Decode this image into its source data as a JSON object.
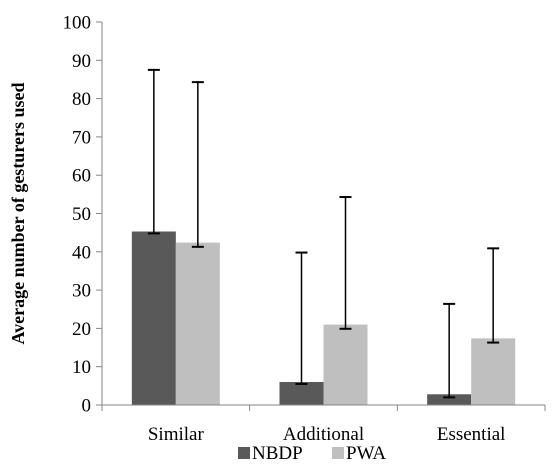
{
  "chart_data": {
    "type": "bar",
    "title": "",
    "xlabel": "",
    "ylabel": "Average number of gesturers used",
    "ylim": [
      0,
      100
    ],
    "yticks": [
      0,
      10,
      20,
      30,
      40,
      50,
      60,
      70,
      80,
      90,
      100
    ],
    "categories": [
      "Similar",
      "Additional",
      "Essential"
    ],
    "series": [
      {
        "name": "NBDP",
        "color": "#595959",
        "values": [
          45.3,
          6.0,
          2.8
        ],
        "err_low": [
          44.8,
          5.5,
          2.0
        ],
        "err_high": [
          87.5,
          39.8,
          26.4
        ]
      },
      {
        "name": "PWA",
        "color": "#bfbfbf",
        "values": [
          42.4,
          21.0,
          17.4
        ],
        "err_low": [
          41.3,
          19.9,
          16.3
        ],
        "err_high": [
          84.3,
          54.3,
          40.9
        ]
      }
    ],
    "grid": false,
    "legend": "bottom"
  }
}
